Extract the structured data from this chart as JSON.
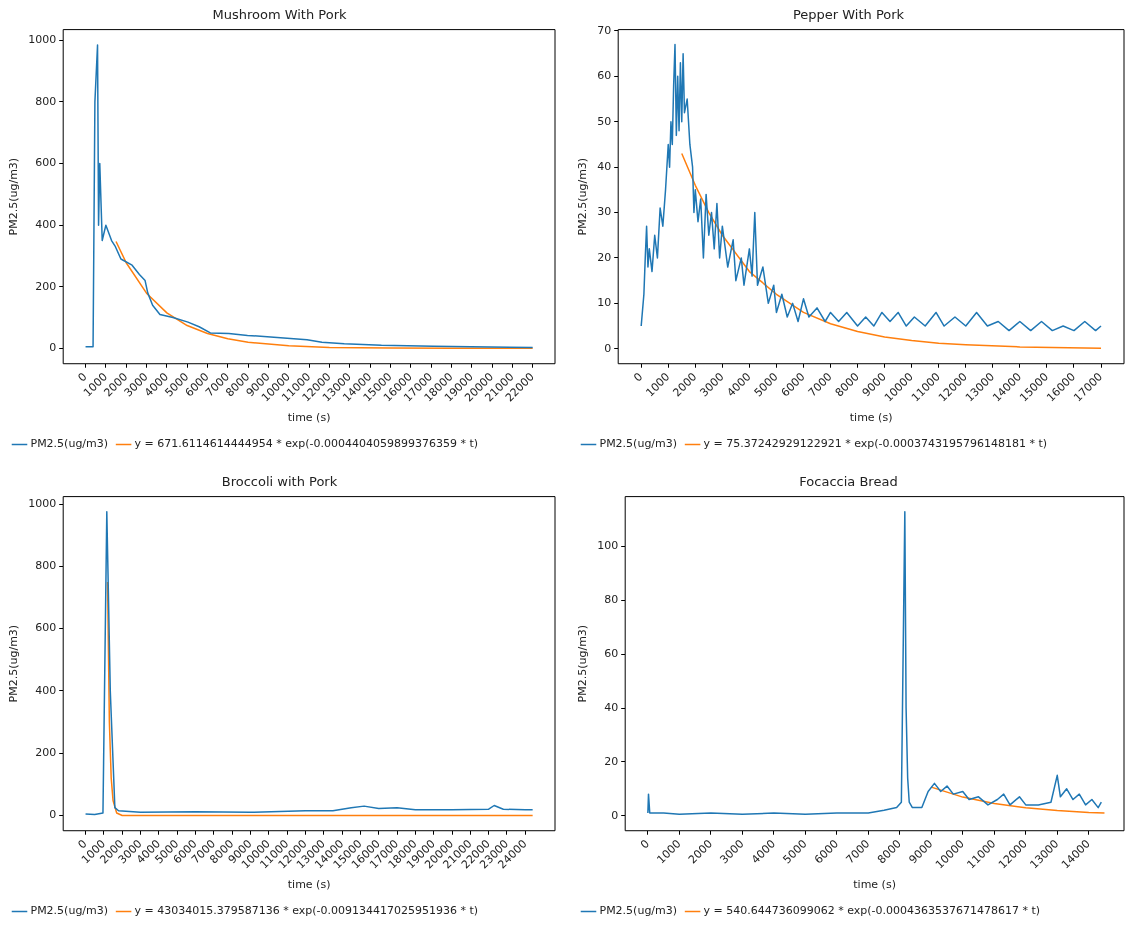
{
  "chart_data": [
    {
      "type": "line",
      "title": "Mushroom With Pork",
      "xlabel": "time (s)",
      "ylabel": "PM2.5(ug/m3)",
      "legend": "bottom",
      "marker": "none",
      "xlim": [
        -1100,
        23100
      ],
      "xticks": [
        0,
        1000,
        2000,
        3000,
        4000,
        5000,
        6000,
        7000,
        8000,
        9000,
        10000,
        11000,
        12000,
        13000,
        14000,
        15000,
        16000,
        17000,
        18000,
        19000,
        20000,
        21000,
        22000
      ],
      "ylim": [
        -50,
        1035
      ],
      "yticks": [
        0,
        200,
        400,
        600,
        800,
        1000
      ],
      "series": [
        {
          "name": "PM2.5(ug/m3)",
          "color": "#1f77b4",
          "x": [
            0,
            300,
            370,
            460,
            590,
            640,
            700,
            820,
            1000,
            1280,
            1470,
            1740,
            2290,
            2650,
            2930,
            3060,
            3300,
            3660,
            4300,
            5040,
            5590,
            6140,
            7050,
            7970,
            9430,
            10900,
            11630,
            12730,
            14560,
            17120,
            18960,
            22000
          ],
          "values": [
            5,
            5,
            5,
            800,
            985,
            400,
            600,
            350,
            400,
            350,
            330,
            290,
            270,
            240,
            220,
            180,
            140,
            110,
            100,
            85,
            70,
            50,
            48,
            42,
            35,
            28,
            20,
            15,
            10,
            7,
            5,
            3
          ]
        },
        {
          "name": "y = 671.6114614444954 * exp(-0.0004404059899376359 * t)",
          "color": "#ff7f0e",
          "x": [
            1500,
            2000,
            3000,
            4000,
            5000,
            6000,
            7000,
            8000,
            10000,
            12000,
            15000,
            18000,
            22000
          ],
          "values": [
            347,
            278,
            179,
            115,
            74,
            48,
            31,
            20,
            8,
            3,
            1,
            0,
            0
          ]
        }
      ]
    },
    {
      "type": "line",
      "title": "Pepper With Pork",
      "xlabel": "time (s)",
      "ylabel": "PM2.5(ug/m3)",
      "legend": "bottom",
      "marker": "none",
      "xlim": [
        -850,
        17850
      ],
      "xticks": [
        0,
        1000,
        2000,
        3000,
        4000,
        5000,
        6000,
        7000,
        8000,
        9000,
        10000,
        11000,
        12000,
        13000,
        14000,
        15000,
        16000,
        17000
      ],
      "ylim": [
        -3.3,
        70.3
      ],
      "yticks": [
        0,
        10,
        20,
        30,
        40,
        50,
        60,
        70
      ],
      "series": [
        {
          "name": "PM2.5(ug/m3)",
          "color": "#1f77b4",
          "x": [
            0,
            100,
            150,
            200,
            250,
            300,
            400,
            500,
            600,
            700,
            800,
            900,
            1000,
            1050,
            1100,
            1150,
            1200,
            1250,
            1300,
            1350,
            1400,
            1450,
            1500,
            1550,
            1600,
            1700,
            1800,
            1900,
            1950,
            2000,
            2100,
            2200,
            2300,
            2400,
            2500,
            2600,
            2700,
            2800,
            2900,
            3000,
            3200,
            3400,
            3500,
            3700,
            3800,
            4000,
            4100,
            4200,
            4300,
            4500,
            4700,
            4900,
            5000,
            5200,
            5400,
            5600,
            5800,
            6000,
            6200,
            6500,
            6800,
            7000,
            7300,
            7600,
            8000,
            8300,
            8600,
            8900,
            9200,
            9500,
            9800,
            10100,
            10500,
            10900,
            11200,
            11600,
            12000,
            12400,
            12800,
            13200,
            13600,
            14000,
            14400,
            14800,
            15200,
            15600,
            16000,
            16400,
            16800,
            17000
          ],
          "values": [
            5,
            12,
            20,
            27,
            18,
            22,
            17,
            25,
            20,
            31,
            27,
            35,
            45,
            40,
            50,
            45,
            58,
            67,
            47,
            60,
            48,
            63,
            50,
            65,
            52,
            55,
            45,
            40,
            30,
            35,
            28,
            33,
            20,
            34,
            25,
            30,
            22,
            32,
            20,
            27,
            18,
            24,
            15,
            20,
            14,
            22,
            16,
            30,
            14,
            18,
            10,
            14,
            8,
            12,
            7,
            10,
            6,
            11,
            7,
            9,
            6,
            8,
            6,
            8,
            5,
            7,
            5,
            8,
            6,
            8,
            5,
            7,
            5,
            8,
            5,
            7,
            5,
            8,
            5,
            6,
            4,
            6,
            4,
            6,
            4,
            5,
            4,
            6,
            4,
            5
          ]
        },
        {
          "name": "y = 75.37242929122921 * exp(-0.0003743195796148181 * t)",
          "color": "#ff7f0e",
          "x": [
            1500,
            2000,
            2500,
            3000,
            4000,
            5000,
            6000,
            7000,
            8000,
            9000,
            10000,
            11000,
            12000,
            14000,
            17000
          ],
          "values": [
            43,
            36,
            30,
            25,
            17,
            12,
            8,
            5.5,
            3.8,
            2.6,
            1.8,
            1.2,
            0.9,
            0.4,
            0.1
          ]
        }
      ]
    },
    {
      "type": "line",
      "title": "Broccoli with Pork",
      "xlabel": "time (s)",
      "ylabel": "PM2.5(ug/m3)",
      "legend": "bottom",
      "marker": "none",
      "xlim": [
        -1220,
        25620
      ],
      "xticks": [
        0,
        1000,
        2000,
        3000,
        4000,
        5000,
        6000,
        7000,
        8000,
        9000,
        10000,
        11000,
        12000,
        13000,
        14000,
        15000,
        16000,
        17000,
        18000,
        19000,
        20000,
        21000,
        22000,
        23000,
        24000
      ],
      "ylim": [
        -49,
        1024
      ],
      "yticks": [
        0,
        200,
        400,
        600,
        800,
        1000
      ],
      "series": [
        {
          "name": "PM2.5(ug/m3)",
          "color": "#1f77b4",
          "x": [
            0,
            500,
            950,
            1160,
            1350,
            1600,
            1800,
            3000,
            6000,
            9000,
            12000,
            13500,
            14500,
            15200,
            16000,
            17000,
            18000,
            20000,
            22000,
            22300,
            22800,
            24000,
            24400
          ],
          "values": [
            5,
            3,
            8,
            975,
            400,
            25,
            15,
            10,
            12,
            10,
            15,
            15,
            25,
            30,
            22,
            25,
            18,
            18,
            20,
            32,
            20,
            18,
            18
          ]
        },
        {
          "name": "y = 43034015.379587136 * exp(-0.009134417025951936 * t)",
          "color": "#ff7f0e",
          "x": [
            1200,
            1300,
            1400,
            1500,
            1700,
            2000,
            24400
          ],
          "values": [
            750,
            300,
            120,
            48,
            8,
            0,
            0
          ]
        }
      ]
    },
    {
      "type": "line",
      "title": "Focaccia Bread",
      "xlabel": "time (s)",
      "ylabel": "PM2.5(ug/m3)",
      "legend": "bottom",
      "marker": "none",
      "xlim": [
        -720,
        15120
      ],
      "xticks": [
        0,
        1000,
        2000,
        3000,
        4000,
        5000,
        6000,
        7000,
        8000,
        9000,
        10000,
        11000,
        12000,
        13000,
        14000
      ],
      "ylim": [
        -5.6,
        118.6
      ],
      "yticks": [
        0,
        20,
        40,
        60,
        80,
        100
      ],
      "series": [
        {
          "name": "PM2.5(ug/m3)",
          "color": "#1f77b4",
          "x": [
            0,
            20,
            60,
            500,
            1000,
            2000,
            3000,
            4000,
            5000,
            6000,
            7000,
            7500,
            7900,
            8050,
            8160,
            8200,
            8250,
            8300,
            8400,
            8700,
            8900,
            9100,
            9300,
            9500,
            9700,
            10000,
            10200,
            10500,
            10800,
            11100,
            11300,
            11500,
            11800,
            12000,
            12400,
            12800,
            13000,
            13100,
            13300,
            13500,
            13700,
            13900,
            14100,
            14300,
            14400
          ],
          "values": [
            1,
            8,
            1,
            1,
            0.5,
            1,
            0.5,
            1,
            0.5,
            1,
            1,
            2,
            3,
            5,
            113,
            40,
            14,
            5,
            3,
            3,
            9,
            12,
            9,
            11,
            8,
            9,
            6,
            7,
            4,
            6,
            8,
            4,
            7,
            4,
            4,
            5,
            15,
            7,
            10,
            6,
            8,
            4,
            6,
            3,
            5
          ]
        },
        {
          "name": "y = 540.644736099062 * exp(-0.0004363537671478617 * t)",
          "color": "#ff7f0e",
          "x": [
            9000,
            10000,
            11000,
            12000,
            13000,
            14000,
            14500
          ],
          "values": [
            10.6,
            6.9,
            4.5,
            2.9,
            1.9,
            1.2,
            1.0
          ]
        }
      ]
    }
  ]
}
